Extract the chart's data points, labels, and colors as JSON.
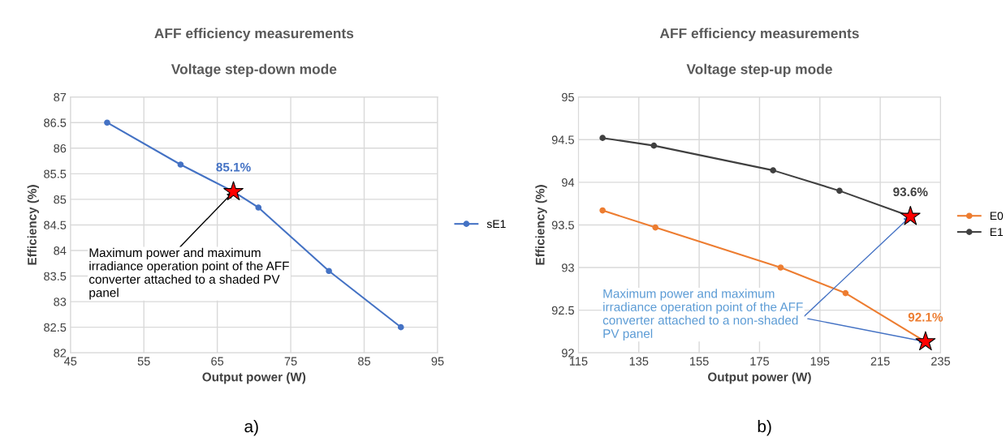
{
  "chart_data": [
    {
      "type": "line",
      "title": "AFF efficiency measurements",
      "subtitle": "Voltage step-down mode",
      "xlabel": "Output power (W)",
      "ylabel": "Efficiency (%)",
      "xlim": [
        45,
        95
      ],
      "xticks": [
        45,
        55,
        65,
        75,
        85,
        95
      ],
      "ylim": [
        82,
        87
      ],
      "yticks": [
        82,
        82.5,
        83,
        83.5,
        84,
        84.5,
        85,
        85.5,
        86,
        86.5,
        87
      ],
      "grid": true,
      "legend": "right",
      "marker": "circle",
      "line_style": "solid",
      "series": [
        {
          "name": "sE1",
          "color": "#4472c4",
          "x": [
            50,
            60,
            67.2,
            70.6,
            80.2,
            90
          ],
          "values": [
            86.5,
            85.68,
            85.15,
            84.84,
            83.6,
            82.5
          ],
          "value_labels": [
            null,
            null,
            "85.1%",
            null,
            null,
            null
          ]
        },
        {
          "type": "scatter",
          "marker": "star",
          "color": "#ff0000",
          "x": [
            67.2
          ],
          "values": [
            85.15
          ]
        }
      ],
      "annotations": [
        {
          "text": "Maximum power and maximum irradiance operation point of the AFF converter attached to a shaded PV panel",
          "x": 67.2,
          "y": 85.15
        },
        "a)"
      ]
    },
    {
      "type": "line",
      "title": "AFF efficiency measurements",
      "subtitle": "Voltage step-up mode",
      "xlabel": "Output power (W)",
      "ylabel": "Efficiency (%)",
      "xlim": [
        115,
        235
      ],
      "xticks": [
        115,
        135,
        155,
        175,
        195,
        215,
        235
      ],
      "ylim": [
        92,
        95
      ],
      "yticks": [
        92,
        92.5,
        93,
        93.5,
        94,
        94.5,
        95
      ],
      "grid": true,
      "legend": "right",
      "marker": "circle",
      "line_style": "solid",
      "series": [
        {
          "name": "E0",
          "color": "#ed7d31",
          "x": [
            123,
            140.5,
            182,
            203.5,
            230
          ],
          "values": [
            93.67,
            93.47,
            93.0,
            92.7,
            92.13
          ],
          "value_labels": [
            null,
            null,
            null,
            null,
            "92.1%"
          ]
        },
        {
          "name": "E1",
          "color": "#404040",
          "x": [
            123,
            140,
            179.5,
            201.5,
            225
          ],
          "values": [
            94.52,
            94.43,
            94.14,
            93.9,
            93.6
          ],
          "value_labels": [
            null,
            null,
            null,
            null,
            "93.6%"
          ]
        },
        {
          "type": "scatter",
          "marker": "star",
          "color": "#ff0000",
          "x": [
            230,
            225
          ],
          "values": [
            92.13,
            93.6
          ]
        }
      ],
      "annotations": [
        {
          "text": "Maximum power and maximum irradiance operation point of the AFF converter attached to a non-shaded PV panel",
          "x": 225,
          "y": 93.6
        },
        "b)"
      ]
    }
  ]
}
